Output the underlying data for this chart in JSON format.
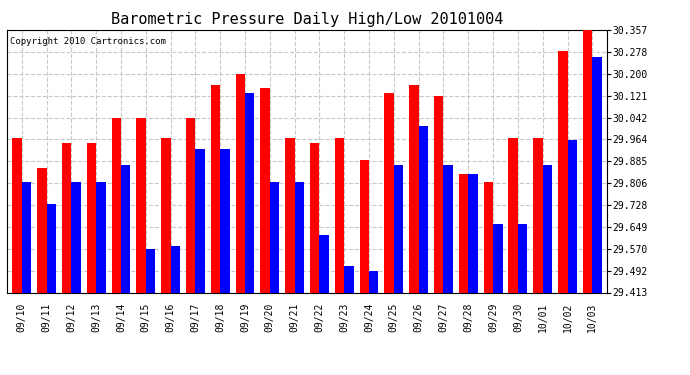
{
  "title": "Barometric Pressure Daily High/Low 20101004",
  "copyright": "Copyright 2010 Cartronics.com",
  "dates": [
    "09/10",
    "09/11",
    "09/12",
    "09/13",
    "09/14",
    "09/15",
    "09/16",
    "09/17",
    "09/18",
    "09/19",
    "09/20",
    "09/21",
    "09/22",
    "09/23",
    "09/24",
    "09/25",
    "09/26",
    "09/27",
    "09/28",
    "09/29",
    "09/30",
    "10/01",
    "10/02",
    "10/03"
  ],
  "highs": [
    29.97,
    29.86,
    29.95,
    29.95,
    30.04,
    30.04,
    29.97,
    30.04,
    30.16,
    30.2,
    30.15,
    29.97,
    29.95,
    29.97,
    29.89,
    30.13,
    30.16,
    30.12,
    29.84,
    29.81,
    29.97,
    29.97,
    30.28,
    30.36
  ],
  "lows": [
    29.81,
    29.73,
    29.81,
    29.81,
    29.87,
    29.57,
    29.58,
    29.93,
    29.93,
    30.13,
    29.81,
    29.81,
    29.62,
    29.51,
    29.49,
    29.87,
    30.01,
    29.87,
    29.84,
    29.66,
    29.66,
    29.87,
    29.96,
    30.26
  ],
  "high_color": "#ff0000",
  "low_color": "#0000ff",
  "bg_color": "#ffffff",
  "grid_color": "#c8c8c8",
  "ylim_min": 29.413,
  "ylim_max": 30.357,
  "yticks": [
    29.413,
    29.492,
    29.57,
    29.649,
    29.728,
    29.806,
    29.885,
    29.964,
    30.042,
    30.121,
    30.2,
    30.278,
    30.357
  ],
  "title_fontsize": 11,
  "tick_fontsize": 7,
  "copyright_fontsize": 6.5,
  "bar_width": 0.38
}
